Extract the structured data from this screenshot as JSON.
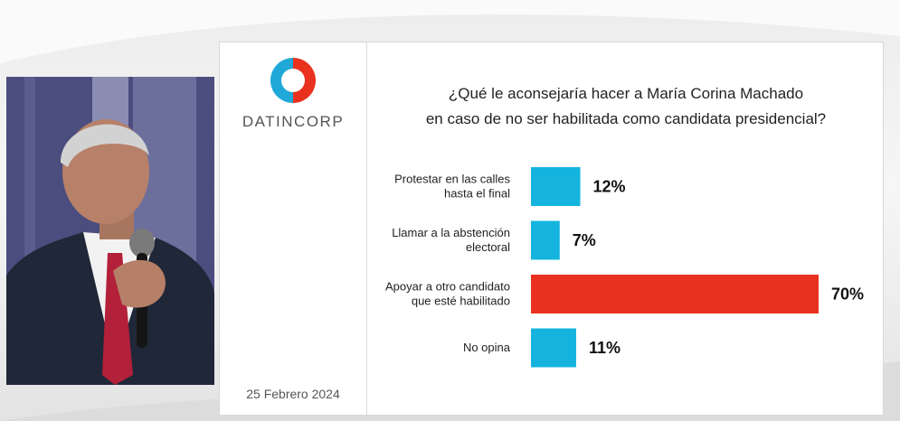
{
  "brand": {
    "name": "DATINCORP",
    "logo_colors": {
      "left": "#20a9d8",
      "right": "#e8321f"
    }
  },
  "date": "25 Febrero 2024",
  "chart_data": {
    "type": "bar",
    "orientation": "horizontal",
    "title_lines": [
      "¿Qué le aconsejaría hacer a María Corina Machado",
      "en caso de no ser habilitada como candidata presidencial?"
    ],
    "categories": [
      [
        "Protestar en las calles",
        "hasta el final"
      ],
      [
        "Llamar a la abstención",
        "electoral"
      ],
      [
        "Apoyar a otro candidato",
        "que esté habilitado"
      ],
      [
        "No opina"
      ]
    ],
    "values": [
      12,
      7,
      70,
      11
    ],
    "value_labels": [
      "12%",
      "7%",
      "70%",
      "11%"
    ],
    "unit": "%",
    "colors": [
      "#14b4de",
      "#14b4de",
      "#e8321f",
      "#14b4de"
    ],
    "xlim": [
      0,
      70
    ],
    "grid": false,
    "legend": "none"
  }
}
